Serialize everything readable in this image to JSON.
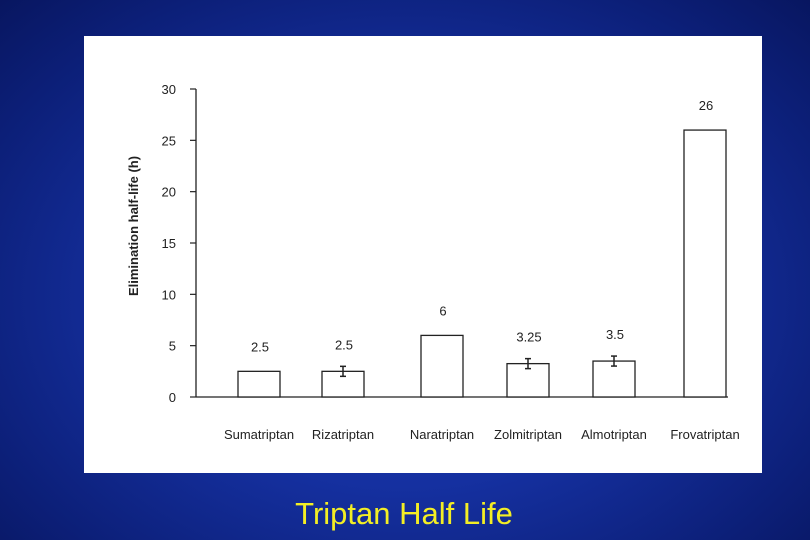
{
  "slide": {
    "title": "Triptan Half Life",
    "background_color": "#1530a0",
    "title_color": "#f3ee25"
  },
  "chart_data": {
    "type": "bar",
    "categories": [
      "Sumatriptan",
      "Rizatriptan",
      "Naratriptan",
      "Zolmitriptan",
      "Almotriptan",
      "Frovatriptan"
    ],
    "values": [
      2.5,
      2.5,
      6,
      3.25,
      3.5,
      26
    ],
    "value_labels": [
      "2.5",
      "2.5",
      "6",
      "3.25",
      "3.5",
      "26"
    ],
    "error_bars": [
      false,
      true,
      false,
      true,
      true,
      false
    ],
    "title": "",
    "xlabel": "",
    "ylabel": "Elimination half-life (h)",
    "ylim": [
      0,
      30
    ],
    "yticks": [
      0,
      5,
      10,
      15,
      20,
      25,
      30
    ],
    "grid": false,
    "bar_fill": "#ffffff",
    "bar_stroke": "#222222"
  }
}
